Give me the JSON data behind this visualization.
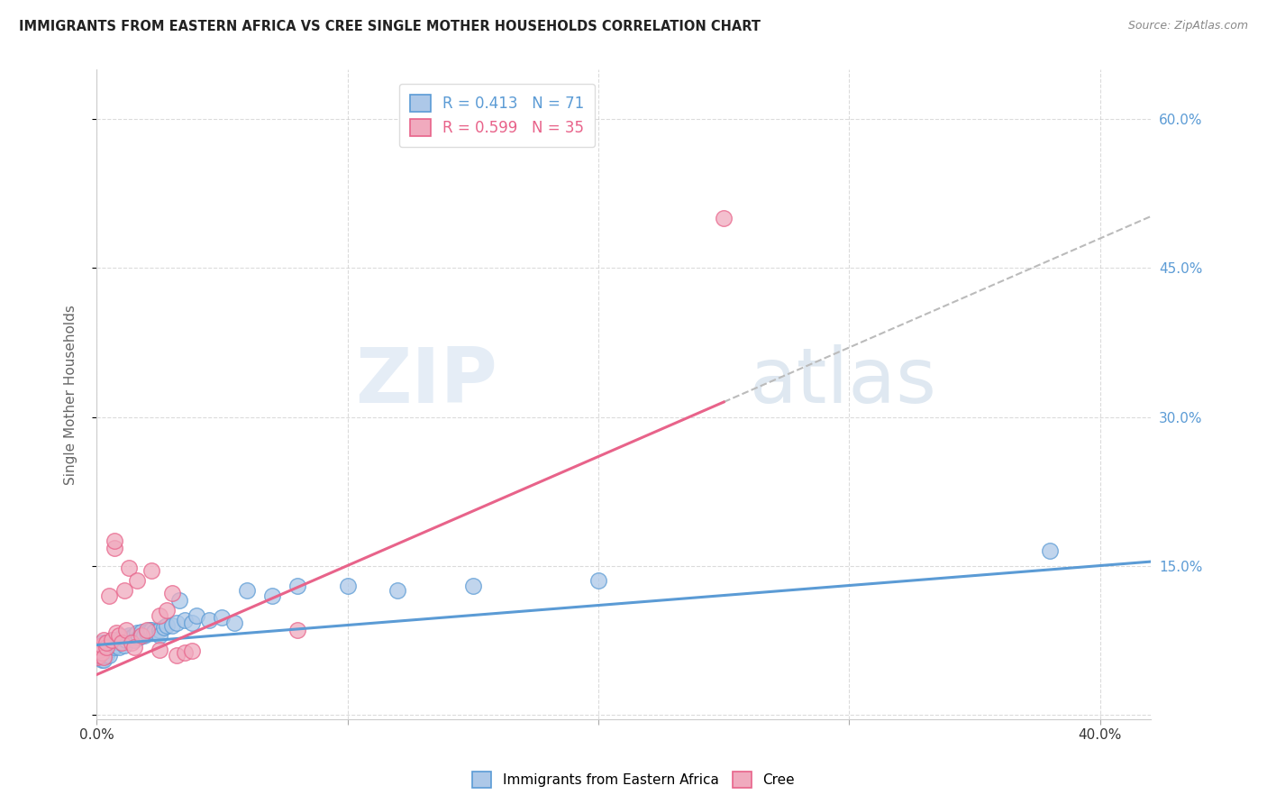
{
  "title": "IMMIGRANTS FROM EASTERN AFRICA VS CREE SINGLE MOTHER HOUSEHOLDS CORRELATION CHART",
  "source": "Source: ZipAtlas.com",
  "ylabel": "Single Mother Households",
  "xlim": [
    0.0,
    0.42
  ],
  "ylim": [
    -0.005,
    0.65
  ],
  "blue_color": "#5b9bd5",
  "pink_color": "#e8638a",
  "blue_scatter_fill": "#adc8e8",
  "pink_scatter_fill": "#f0aabe",
  "background_color": "#ffffff",
  "grid_color": "#cccccc",
  "blue_intercept": 0.07,
  "blue_slope": 0.2,
  "pink_intercept": 0.04,
  "pink_slope": 1.1,
  "dashed_color": "#bbbbbb",
  "watermark_zip": "ZIP",
  "watermark_atlas": "atlas",
  "legend1_label": "R = 0.413   N = 71",
  "legend2_label": "R = 0.599   N = 35",
  "bottom_legend1": "Immigrants from Eastern Africa",
  "bottom_legend2": "Cree",
  "right_ytick_labels": [
    "",
    "15.0%",
    "30.0%",
    "45.0%",
    "60.0%"
  ],
  "right_ytick_values": [
    0.0,
    0.15,
    0.3,
    0.45,
    0.6
  ],
  "blue_x": [
    0.0005,
    0.001,
    0.001,
    0.0015,
    0.0015,
    0.002,
    0.002,
    0.002,
    0.002,
    0.0025,
    0.003,
    0.003,
    0.003,
    0.003,
    0.003,
    0.0035,
    0.004,
    0.004,
    0.004,
    0.004,
    0.005,
    0.005,
    0.005,
    0.005,
    0.006,
    0.006,
    0.007,
    0.007,
    0.008,
    0.008,
    0.009,
    0.009,
    0.01,
    0.01,
    0.011,
    0.011,
    0.012,
    0.012,
    0.013,
    0.014,
    0.015,
    0.015,
    0.016,
    0.017,
    0.018,
    0.019,
    0.02,
    0.021,
    0.022,
    0.023,
    0.025,
    0.025,
    0.027,
    0.028,
    0.03,
    0.032,
    0.033,
    0.035,
    0.038,
    0.04,
    0.045,
    0.05,
    0.055,
    0.06,
    0.07,
    0.08,
    0.1,
    0.12,
    0.15,
    0.2,
    0.38
  ],
  "blue_y": [
    0.06,
    0.065,
    0.058,
    0.07,
    0.065,
    0.063,
    0.068,
    0.055,
    0.072,
    0.067,
    0.06,
    0.065,
    0.07,
    0.055,
    0.068,
    0.072,
    0.063,
    0.068,
    0.072,
    0.06,
    0.067,
    0.072,
    0.065,
    0.06,
    0.07,
    0.075,
    0.068,
    0.075,
    0.07,
    0.073,
    0.068,
    0.075,
    0.073,
    0.078,
    0.075,
    0.07,
    0.078,
    0.075,
    0.08,
    0.078,
    0.08,
    0.075,
    0.082,
    0.078,
    0.083,
    0.08,
    0.082,
    0.085,
    0.085,
    0.083,
    0.085,
    0.08,
    0.088,
    0.09,
    0.09,
    0.092,
    0.115,
    0.095,
    0.092,
    0.1,
    0.095,
    0.098,
    0.092,
    0.125,
    0.12,
    0.13,
    0.13,
    0.125,
    0.13,
    0.135,
    0.165
  ],
  "pink_x": [
    0.0005,
    0.001,
    0.001,
    0.0015,
    0.002,
    0.002,
    0.003,
    0.003,
    0.004,
    0.004,
    0.005,
    0.006,
    0.007,
    0.007,
    0.008,
    0.009,
    0.01,
    0.011,
    0.012,
    0.013,
    0.014,
    0.015,
    0.016,
    0.018,
    0.02,
    0.022,
    0.025,
    0.025,
    0.028,
    0.03,
    0.032,
    0.035,
    0.038,
    0.08,
    0.25
  ],
  "pink_y": [
    0.058,
    0.06,
    0.065,
    0.068,
    0.062,
    0.07,
    0.058,
    0.075,
    0.068,
    0.072,
    0.12,
    0.075,
    0.168,
    0.175,
    0.082,
    0.08,
    0.072,
    0.125,
    0.085,
    0.148,
    0.072,
    0.068,
    0.135,
    0.08,
    0.085,
    0.145,
    0.1,
    0.065,
    0.105,
    0.122,
    0.06,
    0.062,
    0.064,
    0.085,
    0.5
  ]
}
